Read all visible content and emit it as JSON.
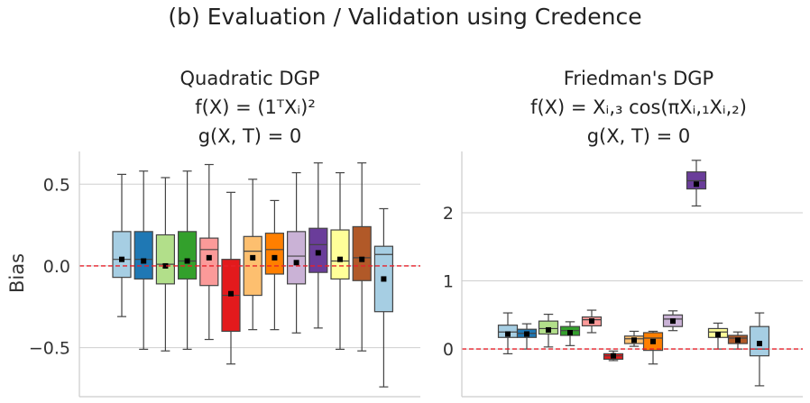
{
  "suptitle": "(b) Evaluation / Validation using Credence",
  "chart_data": [
    {
      "type": "box",
      "title_lines": [
        "Quadratic DGP",
        "f(X) = (1ᵀXᵢ)²",
        "g(X, T) = 0"
      ],
      "ylabel": "Bias",
      "xlabel": "",
      "ylim": [
        -0.8,
        0.7
      ],
      "yticks": [
        -0.5,
        0.0,
        0.5
      ],
      "ytick_labels": [
        "−0.5",
        "0.0",
        "0.5"
      ],
      "grid": true,
      "reference_line": 0,
      "series": [
        {
          "color": "#a6cee3",
          "whislo": -0.31,
          "q1": -0.07,
          "med": 0.04,
          "q3": 0.21,
          "whishi": 0.56,
          "mean": 0.04
        },
        {
          "color": "#1f78b4",
          "whislo": -0.51,
          "q1": -0.08,
          "med": 0.04,
          "q3": 0.21,
          "whishi": 0.58,
          "mean": 0.03
        },
        {
          "color": "#b2df8a",
          "whislo": -0.52,
          "q1": -0.11,
          "med": 0.01,
          "q3": 0.19,
          "whishi": 0.54,
          "mean": 0.0
        },
        {
          "color": "#33a02c",
          "whislo": -0.51,
          "q1": -0.08,
          "med": 0.03,
          "q3": 0.21,
          "whishi": 0.58,
          "mean": 0.03
        },
        {
          "color": "#fb9a99",
          "whislo": -0.45,
          "q1": -0.12,
          "med": 0.1,
          "q3": 0.17,
          "whishi": 0.62,
          "mean": 0.05
        },
        {
          "color": "#e31a1c",
          "whislo": -0.6,
          "q1": -0.4,
          "med": -0.18,
          "q3": 0.04,
          "whishi": 0.45,
          "mean": -0.17
        },
        {
          "color": "#fdbf6f",
          "whislo": -0.39,
          "q1": -0.18,
          "med": 0.09,
          "q3": 0.18,
          "whishi": 0.53,
          "mean": 0.05
        },
        {
          "color": "#ff7f00",
          "whislo": -0.39,
          "q1": -0.05,
          "med": 0.1,
          "q3": 0.2,
          "whishi": 0.4,
          "mean": 0.05
        },
        {
          "color": "#cab2d6",
          "whislo": -0.41,
          "q1": -0.11,
          "med": 0.06,
          "q3": 0.21,
          "whishi": 0.57,
          "mean": 0.02
        },
        {
          "color": "#6a3d9a",
          "whislo": -0.38,
          "q1": -0.04,
          "med": 0.13,
          "q3": 0.23,
          "whishi": 0.63,
          "mean": 0.08
        },
        {
          "color": "#ffff99",
          "whislo": -0.51,
          "q1": -0.08,
          "med": 0.03,
          "q3": 0.22,
          "whishi": 0.57,
          "mean": 0.04
        },
        {
          "color": "#b15928",
          "whislo": -0.52,
          "q1": -0.09,
          "med": 0.05,
          "q3": 0.24,
          "whishi": 0.63,
          "mean": 0.04
        },
        {
          "color": "#a6cee3",
          "whislo": -0.74,
          "q1": -0.28,
          "med": 0.07,
          "q3": 0.12,
          "whishi": 0.35,
          "mean": -0.08
        }
      ]
    },
    {
      "type": "box",
      "title_lines": [
        "Friedman's DGP",
        "f(X) = Xᵢ,₃ cos(πXᵢ,₁Xᵢ,₂)",
        "g(X, T) = 0"
      ],
      "ylabel": "",
      "xlabel": "",
      "ylim": [
        -0.7,
        2.9
      ],
      "yticks": [
        0,
        1,
        2
      ],
      "ytick_labels": [
        "0",
        "1",
        "2"
      ],
      "grid": true,
      "reference_line": 0,
      "series": [
        {
          "color": "#a6cee3",
          "whislo": -0.07,
          "q1": 0.17,
          "med": 0.25,
          "q3": 0.35,
          "whishi": 0.53,
          "mean": 0.22
        },
        {
          "color": "#1f78b4",
          "whislo": 0.0,
          "q1": 0.17,
          "med": 0.23,
          "q3": 0.29,
          "whishi": 0.37,
          "mean": 0.22
        },
        {
          "color": "#b2df8a",
          "whislo": 0.03,
          "q1": 0.22,
          "med": 0.3,
          "q3": 0.41,
          "whishi": 0.51,
          "mean": 0.28
        },
        {
          "color": "#33a02c",
          "whislo": 0.05,
          "q1": 0.2,
          "med": 0.27,
          "q3": 0.33,
          "whishi": 0.4,
          "mean": 0.24
        },
        {
          "color": "#fb9a99",
          "whislo": 0.24,
          "q1": 0.34,
          "med": 0.43,
          "q3": 0.47,
          "whishi": 0.57,
          "mean": 0.41
        },
        {
          "color": "#e31a1c",
          "whislo": -0.17,
          "q1": -0.15,
          "med": -0.1,
          "q3": -0.07,
          "whishi": -0.03,
          "mean": -0.1
        },
        {
          "color": "#fdbf6f",
          "whislo": 0.04,
          "q1": 0.08,
          "med": 0.15,
          "q3": 0.19,
          "whishi": 0.26,
          "mean": 0.13
        },
        {
          "color": "#ff7f00",
          "whislo": -0.22,
          "q1": -0.02,
          "med": 0.16,
          "q3": 0.24,
          "whishi": 0.26,
          "mean": 0.11
        },
        {
          "color": "#cab2d6",
          "whislo": 0.27,
          "q1": 0.33,
          "med": 0.44,
          "q3": 0.5,
          "whishi": 0.56,
          "mean": 0.41
        },
        {
          "color": "#6a3d9a",
          "whislo": 2.1,
          "q1": 2.35,
          "med": 2.47,
          "q3": 2.6,
          "whishi": 2.77,
          "mean": 2.42
        },
        {
          "color": "#ffff99",
          "whislo": 0.0,
          "q1": 0.17,
          "med": 0.25,
          "q3": 0.3,
          "whishi": 0.38,
          "mean": 0.21
        },
        {
          "color": "#b15928",
          "whislo": 0.0,
          "q1": 0.08,
          "med": 0.16,
          "q3": 0.2,
          "whishi": 0.25,
          "mean": 0.13
        },
        {
          "color": "#a6cee3",
          "whislo": -0.54,
          "q1": -0.1,
          "med": 0.0,
          "q3": 0.33,
          "whishi": 0.53,
          "mean": 0.08
        }
      ]
    }
  ]
}
